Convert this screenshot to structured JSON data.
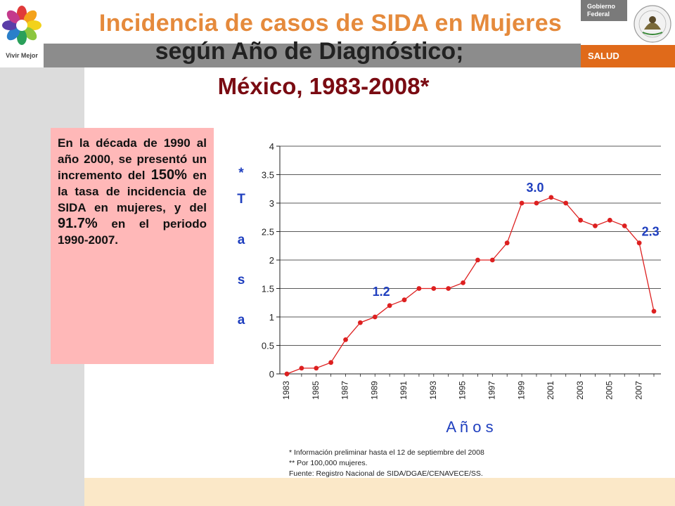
{
  "header": {
    "title_line1": "Incidencia de casos de SIDA en Mujeres",
    "title_line2": "según Año de Diagnóstico;",
    "title_line3": "México, 1983-2008*",
    "logo_caption": "Vivir Mejor",
    "gov_line1": "Gobierno",
    "gov_line2": "Federal",
    "salud_label": "SALUD"
  },
  "textbox": {
    "part1": "En la década de 1990 al año 2000, se presentó un incremento del ",
    "pct1": "150%",
    "part2": " en la tasa de incidencia de SIDA en mujeres, y del ",
    "pct2": "91.7%",
    "part3": " en el periodo 1990-2007."
  },
  "footnotes": {
    "line1": "* Información preliminar hasta el 12 de septiembre del 2008",
    "line2": "** Por 100,000 mujeres.",
    "line3": "Fuente: Registro Nacional de SIDA/DGAE/CENAVECE/SS."
  },
  "colors": {
    "series": "#dd2020",
    "label_blue": "#1f3fbf",
    "title_orange": "#e58a3c",
    "title_dark_red": "#7a0b12",
    "textbox_bg": "#ffb8b8"
  },
  "chart_data": {
    "type": "line",
    "xlabel": "A ñ o s",
    "ylabel_letters": [
      "*",
      "T",
      "a",
      "s",
      "a"
    ],
    "ylim": [
      0,
      4
    ],
    "yticks": [
      "0",
      "0.5",
      "1",
      "1.5",
      "2",
      "2.5",
      "3",
      "3.5",
      "4"
    ],
    "grid": true,
    "x": [
      1983,
      1984,
      1985,
      1986,
      1987,
      1988,
      1989,
      1990,
      1991,
      1992,
      1993,
      1994,
      1995,
      1996,
      1997,
      1998,
      1999,
      2000,
      2001,
      2002,
      2003,
      2004,
      2005,
      2006,
      2007,
      2008
    ],
    "xtick_labels": [
      "1983",
      "1985",
      "1987",
      "1989",
      "1991",
      "1993",
      "1995",
      "1997",
      "1999",
      "2001",
      "2003",
      "2005",
      "2007"
    ],
    "series": [
      {
        "values": [
          0.0,
          0.1,
          0.1,
          0.2,
          0.6,
          0.9,
          1.0,
          1.2,
          1.3,
          1.5,
          1.5,
          1.5,
          1.6,
          2.0,
          2.0,
          2.3,
          3.0,
          3.0,
          3.1,
          3.0,
          2.7,
          2.6,
          2.7,
          2.6,
          2.3,
          1.1
        ]
      }
    ],
    "annotations": [
      {
        "label": "1.2",
        "x": 1990,
        "y": 1.2
      },
      {
        "label": "3.0",
        "x": 2000,
        "y": 3.0
      },
      {
        "label": "2.3",
        "x": 2007,
        "y": 2.3
      }
    ]
  }
}
